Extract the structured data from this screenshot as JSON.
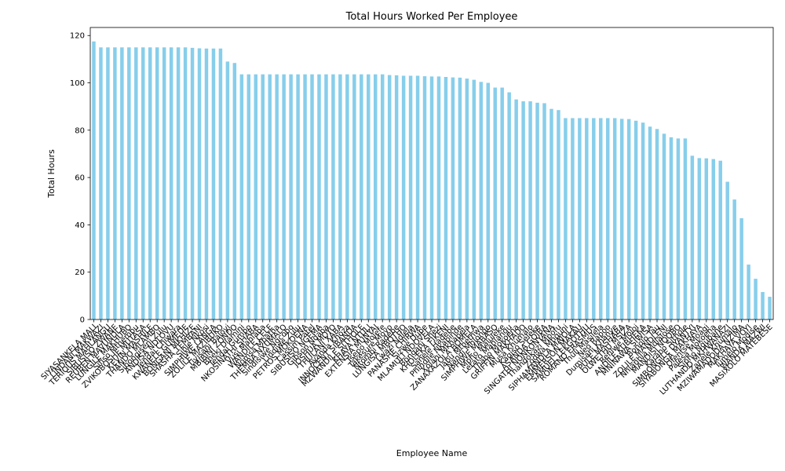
{
  "chart_data": {
    "type": "bar",
    "title": "Total Hours Worked Per Employee",
    "xlabel": "Employee Name",
    "ylabel": "Total Hours",
    "ylim": [
      0,
      123.4
    ],
    "yticks": [
      0,
      20,
      40,
      60,
      80,
      100,
      120
    ],
    "grid": false,
    "bar_color": "#87ceeb",
    "categories": [
      "SIYASANKELA MALI",
      "LINDANI MAKWAZI",
      "TERIOUS MAHLANGU",
      "SIBUSISO ZWANE",
      "REUBEN MAVUNDLA",
      "LUNGILE MAKHUBO",
      "Sifiso Mthembu",
      "ZVIKOBOSHE MUTASA",
      "KEVIN MASHILE",
      "THANDO MLAMBO",
      "Sibongiseni Zulu",
      "ANDISA NDLOVU",
      "Tendai Chiwara",
      "KWANELE GUMEDE",
      "BONGANI MKHIZE",
      "SHASHA TEMBANI",
      "Sihle Nkosi",
      "SIMPHIWE LANGA",
      "ZOLILE MAZIBUKO",
      "Tiyisani Baloyi",
      "MBIBINI ZONDO",
      "Bheki Dlamini",
      "Tendai Gumbo",
      "NKOSINATHI SHABA",
      "Vusi Mahlaba",
      "WANDILE CELE",
      "Nomsa Mbatha",
      "THEMBA NXUMALO",
      "Sindisiwe Ngcobo",
      "Lindiwe Zulu",
      "PETROS MOKOENA",
      "Cassim Patel",
      "SIBUSISO NGEMA",
      "Gibson Ndaba",
      "JOSHUA MOYO",
      "THULANI XABA",
      "Ayanda Khoza",
      "INNOCENT SIBANDA",
      "MZWANDILE SITHOLE",
      "KHAYA NTULI",
      "EXTENSIA MUNYAI",
      "Tsepo Molefe",
      "Takesure Moyo",
      "Ntombi Radebe",
      "LUNGISA MBOTHO",
      "Lwazi Ndlela",
      "PANASHE CHIRWA",
      "Sizwe Dube",
      "MLAMULI NDOVELA",
      "Bongani Shezi",
      "KHOLEKA FIKENI",
      "Sanele Hadebe",
      "Phindile Nkabinde",
      "Xolani Mkhabela",
      "ZANAXAZOLA BOMELA",
      "Jabu Mthethwa",
      "Nandi Mhlongo",
      "SIMPHIWE MABASO",
      "Mpho Maluleke",
      "Lerato Mahlangu",
      "Thabo Mokoena",
      "GRIFFIN MAKHADO",
      "Musa Khumalo",
      "Kagiso Seleke",
      "ASANDA GQIBA",
      "SINGATHI NONKONYANA",
      "Thandokazi Mpofu",
      "Zodwa Mnguni",
      "SIPHAMANDLA MAJOLA",
      "EMMERSON MAKAU",
      "SAMUEL LEKGOTHU",
      "ROMANO ERASMUS",
      "Thuli Masilela",
      "Neo Rapoo",
      "Dumisani Khanye",
      "PULE MASHABA",
      "OLWETHU MSIZA",
      "Refilwe Moloi",
      "ANDILE KUBHEKA",
      "MNINAWA SIWISA",
      "Bonolo Tau",
      "ZOLILE MANDLENI",
      "Nhlanhla Mdlalose",
      "MANDISI NQOBO",
      "Karabo Sithole",
      "SIMBONGILE DYANTYI",
      "SIYABONGA MAKHAYA",
      "Ofentse Moagi",
      "Palesa Mokoena",
      "Sipho Ngubane",
      "LUTHANDO MKHWANAZI",
      "Zanele Khumalo",
      "MZIWAMADODA NZIMA",
      "MAKHAYA VOYI",
      "Tumelo Modise",
      "WANDA MAZWI",
      "MASIXOLO MATEBESE"
    ],
    "values": [
      117.5,
      115.0,
      115.0,
      115.0,
      115.0,
      115.0,
      115.0,
      115.0,
      115.0,
      115.0,
      115.0,
      115.0,
      115.0,
      115.0,
      114.8,
      114.6,
      114.5,
      114.5,
      114.5,
      109.0,
      108.4,
      103.6,
      103.6,
      103.6,
      103.6,
      103.6,
      103.6,
      103.6,
      103.6,
      103.6,
      103.6,
      103.6,
      103.6,
      103.6,
      103.6,
      103.6,
      103.6,
      103.6,
      103.6,
      103.6,
      103.6,
      103.6,
      103.3,
      103.2,
      103.0,
      103.0,
      103.0,
      102.8,
      102.7,
      102.7,
      102.5,
      102.3,
      102.2,
      101.8,
      101.3,
      100.4,
      100.0,
      98.0,
      98.0,
      96.0,
      93.0,
      92.2,
      92.2,
      91.6,
      91.4,
      89.0,
      88.5,
      85.1,
      85.1,
      85.1,
      85.1,
      85.1,
      85.1,
      85.1,
      85.1,
      84.8,
      84.7,
      84.0,
      83.2,
      81.5,
      80.5,
      78.5,
      77.0,
      76.5,
      76.5,
      69.2,
      68.2,
      68.1,
      67.8,
      67.1,
      58.2,
      50.7,
      42.8,
      23.2,
      17.2,
      11.6,
      9.6
    ]
  }
}
